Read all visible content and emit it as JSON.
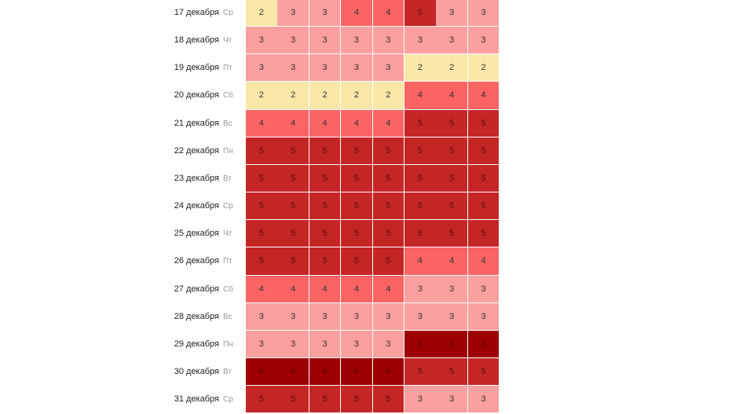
{
  "level_colors": {
    "2": "#fbe8a8",
    "3": "#fc9f9f",
    "4": "#fc6464",
    "5": "#c42525",
    "6": "#9c0000"
  },
  "rows": [
    {
      "date": "17 декабря",
      "dow": "Ср",
      "values": [
        2,
        3,
        3,
        4,
        4,
        5,
        3,
        3
      ]
    },
    {
      "date": "18 декабря",
      "dow": "Чт",
      "values": [
        3,
        3,
        3,
        3,
        3,
        3,
        3,
        3
      ]
    },
    {
      "date": "19 декабря",
      "dow": "Пт",
      "values": [
        3,
        3,
        3,
        3,
        3,
        2,
        2,
        2
      ]
    },
    {
      "date": "20 декабря",
      "dow": "Сб",
      "values": [
        2,
        2,
        2,
        2,
        2,
        4,
        4,
        4
      ]
    },
    {
      "date": "21 декабря",
      "dow": "Вс",
      "values": [
        4,
        4,
        4,
        4,
        4,
        5,
        5,
        5
      ]
    },
    {
      "date": "22 декабря",
      "dow": "Пн",
      "values": [
        5,
        5,
        5,
        5,
        5,
        5,
        5,
        5
      ]
    },
    {
      "date": "23 декабря",
      "dow": "Вт",
      "values": [
        5,
        5,
        5,
        5,
        5,
        5,
        5,
        5
      ]
    },
    {
      "date": "24 декабря",
      "dow": "Ср",
      "values": [
        5,
        5,
        5,
        5,
        5,
        5,
        5,
        5
      ]
    },
    {
      "date": "25 декабря",
      "dow": "Чт",
      "values": [
        5,
        5,
        5,
        5,
        5,
        5,
        5,
        5
      ]
    },
    {
      "date": "26 декабря",
      "dow": "Пт",
      "values": [
        5,
        5,
        5,
        5,
        5,
        4,
        4,
        4
      ]
    },
    {
      "date": "27 декабря",
      "dow": "Сб",
      "values": [
        4,
        4,
        4,
        4,
        4,
        3,
        3,
        3
      ]
    },
    {
      "date": "28 декабря",
      "dow": "Вс",
      "values": [
        3,
        3,
        3,
        3,
        3,
        3,
        3,
        3
      ]
    },
    {
      "date": "29 декабря",
      "dow": "Пн",
      "values": [
        3,
        3,
        3,
        3,
        3,
        6,
        6,
        6
      ]
    },
    {
      "date": "30 декабря",
      "dow": "Вт",
      "values": [
        6,
        6,
        6,
        6,
        6,
        5,
        5,
        5
      ]
    },
    {
      "date": "31 декабря",
      "dow": "Ср",
      "values": [
        5,
        5,
        5,
        5,
        5,
        3,
        3,
        3
      ]
    }
  ]
}
